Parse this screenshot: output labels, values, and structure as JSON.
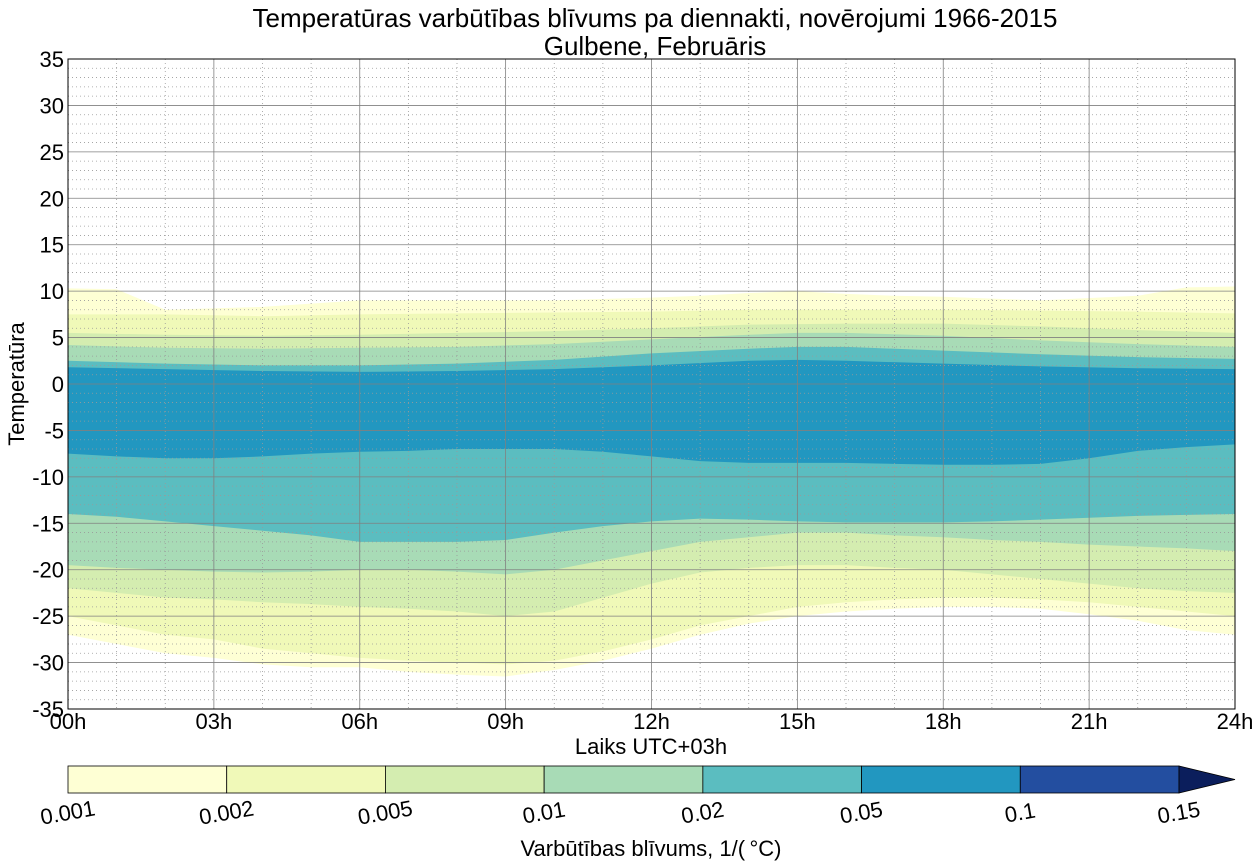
{
  "chart_data": {
    "type": "contour",
    "title": "Temperatūras varbūtības blīvums pa diennakti, novērojumi 1966-2015",
    "subtitle": "Gulbene, Februāris",
    "xlabel": "Laiks UTC+03h",
    "ylabel": "Temperatūra",
    "x_ticks": [
      "00h",
      "03h",
      "06h",
      "09h",
      "12h",
      "15h",
      "18h",
      "21h",
      "24h"
    ],
    "x_range_hours": [
      0,
      24
    ],
    "y_ticks": [
      35,
      30,
      25,
      20,
      15,
      10,
      5,
      0,
      -5,
      -10,
      -15,
      -20,
      -25,
      -30,
      -35
    ],
    "y_range": [
      -35,
      35
    ],
    "grid": "major solid, minor dotted",
    "colorbar": {
      "label": "Varbūtības blīvums, 1/( °C)",
      "levels": [
        "0.001",
        "0.002",
        "0.005",
        "0.01",
        "0.02",
        "0.05",
        "0.1",
        "0.15"
      ],
      "colors": [
        "#feffd4",
        "#f0f9b8",
        "#d4edb0",
        "#a8dbb6",
        "#5bbdc0",
        "#2297c0",
        "#234ea0",
        "#0b1e5c"
      ],
      "extend": "max"
    },
    "bands": [
      {
        "level": "0.001",
        "color": "#feffd4",
        "upper": [
          [
            0,
            10.3
          ],
          [
            1,
            10.2
          ],
          [
            2,
            8
          ],
          [
            4,
            8.3
          ],
          [
            6,
            9
          ],
          [
            8,
            9
          ],
          [
            10,
            9
          ],
          [
            12,
            9.3
          ],
          [
            13,
            9.5
          ],
          [
            14,
            9.8
          ],
          [
            15,
            10
          ],
          [
            16,
            9.7
          ],
          [
            17,
            9.5
          ],
          [
            18,
            9.4
          ],
          [
            19,
            9.2
          ],
          [
            20,
            9
          ],
          [
            22,
            9.5
          ],
          [
            23,
            10.4
          ],
          [
            24,
            10.5
          ]
        ],
        "lower": [
          [
            0,
            -27
          ],
          [
            1,
            -28
          ],
          [
            2,
            -29
          ],
          [
            3,
            -29.5
          ],
          [
            4,
            -30.2
          ],
          [
            5,
            -30.5
          ],
          [
            6,
            -30.5
          ],
          [
            7,
            -31
          ],
          [
            8,
            -31.3
          ],
          [
            9,
            -31.5
          ],
          [
            10,
            -30.8
          ],
          [
            11,
            -29.8
          ],
          [
            12,
            -28.5
          ],
          [
            13,
            -27
          ],
          [
            14,
            -25.8
          ],
          [
            15,
            -25
          ],
          [
            16,
            -24.5
          ],
          [
            17,
            -24.2
          ],
          [
            18,
            -24
          ],
          [
            19,
            -24
          ],
          [
            20,
            -24.2
          ],
          [
            21,
            -24.8
          ],
          [
            22,
            -25.5
          ],
          [
            23,
            -26.5
          ],
          [
            24,
            -27
          ]
        ]
      },
      {
        "level": "0.002",
        "color": "#f0f9b8",
        "upper": [
          [
            0,
            7.5
          ],
          [
            2,
            7.5
          ],
          [
            4,
            7.3
          ],
          [
            6,
            7.5
          ],
          [
            8,
            7.6
          ],
          [
            10,
            7.7
          ],
          [
            12,
            7.8
          ],
          [
            14,
            8
          ],
          [
            16,
            8
          ],
          [
            18,
            8
          ],
          [
            20,
            7.9
          ],
          [
            22,
            7.8
          ],
          [
            24,
            7.6
          ]
        ],
        "lower": [
          [
            0,
            -25
          ],
          [
            1,
            -26
          ],
          [
            2,
            -27
          ],
          [
            3,
            -27.5
          ],
          [
            4,
            -28.5
          ],
          [
            5,
            -29
          ],
          [
            6,
            -29.5
          ],
          [
            7,
            -29.8
          ],
          [
            8,
            -30
          ],
          [
            9,
            -30.2
          ],
          [
            10,
            -29.8
          ],
          [
            11,
            -28.8
          ],
          [
            12,
            -27.5
          ],
          [
            13,
            -26
          ],
          [
            14,
            -25
          ],
          [
            15,
            -24
          ],
          [
            16,
            -23.5
          ],
          [
            17,
            -23.2
          ],
          [
            18,
            -23
          ],
          [
            19,
            -23
          ],
          [
            20,
            -23.2
          ],
          [
            21,
            -23.5
          ],
          [
            22,
            -24
          ],
          [
            23,
            -24.5
          ],
          [
            24,
            -25
          ]
        ]
      },
      {
        "level": "0.005",
        "color": "#d4edb0",
        "upper": [
          [
            0,
            5.5
          ],
          [
            2,
            5.3
          ],
          [
            4,
            5.2
          ],
          [
            6,
            5.3
          ],
          [
            8,
            5.5
          ],
          [
            10,
            5.7
          ],
          [
            12,
            6
          ],
          [
            14,
            6.4
          ],
          [
            16,
            6.5
          ],
          [
            18,
            6.5
          ],
          [
            20,
            6.2
          ],
          [
            22,
            5.8
          ],
          [
            24,
            5.5
          ]
        ],
        "lower": [
          [
            0,
            -22
          ],
          [
            1,
            -22.5
          ],
          [
            2,
            -23
          ],
          [
            3,
            -23.2
          ],
          [
            4,
            -23.5
          ],
          [
            5,
            -23.7
          ],
          [
            6,
            -24
          ],
          [
            7,
            -24.2
          ],
          [
            8,
            -24.5
          ],
          [
            9,
            -25
          ],
          [
            10,
            -24.5
          ],
          [
            11,
            -23
          ],
          [
            12,
            -21.5
          ],
          [
            13,
            -20.3
          ],
          [
            14,
            -19.8
          ],
          [
            15,
            -19.5
          ],
          [
            16,
            -19.5
          ],
          [
            17,
            -19.8
          ],
          [
            18,
            -20
          ],
          [
            19,
            -20.5
          ],
          [
            20,
            -21
          ],
          [
            21,
            -21.5
          ],
          [
            22,
            -22
          ],
          [
            23,
            -22.3
          ],
          [
            24,
            -22.5
          ]
        ]
      },
      {
        "level": "0.01",
        "color": "#a8dbb6",
        "upper": [
          [
            0,
            4.2
          ],
          [
            2,
            3.9
          ],
          [
            4,
            3.8
          ],
          [
            6,
            3.9
          ],
          [
            8,
            4
          ],
          [
            10,
            4.3
          ],
          [
            12,
            4.8
          ],
          [
            14,
            5.3
          ],
          [
            15,
            5.5
          ],
          [
            16,
            5.5
          ],
          [
            18,
            5.2
          ],
          [
            20,
            4.7
          ],
          [
            22,
            4.3
          ],
          [
            24,
            4
          ]
        ],
        "lower": [
          [
            0,
            -19.5
          ],
          [
            1,
            -19.8
          ],
          [
            2,
            -20
          ],
          [
            3,
            -20.2
          ],
          [
            4,
            -20.3
          ],
          [
            5,
            -20.2
          ],
          [
            6,
            -20
          ],
          [
            7,
            -20
          ],
          [
            8,
            -20.2
          ],
          [
            9,
            -20.5
          ],
          [
            10,
            -20
          ],
          [
            11,
            -19
          ],
          [
            12,
            -18
          ],
          [
            13,
            -17
          ],
          [
            14,
            -16.5
          ],
          [
            15,
            -16
          ],
          [
            16,
            -16
          ],
          [
            17,
            -16.3
          ],
          [
            18,
            -16.5
          ],
          [
            19,
            -16.8
          ],
          [
            20,
            -17
          ],
          [
            21,
            -17.3
          ],
          [
            22,
            -17.5
          ],
          [
            23,
            -17.7
          ],
          [
            24,
            -18
          ]
        ]
      },
      {
        "level": "0.02",
        "color": "#5bbdc0",
        "upper": [
          [
            0,
            2.5
          ],
          [
            2,
            2.2
          ],
          [
            4,
            2
          ],
          [
            6,
            2
          ],
          [
            8,
            2.2
          ],
          [
            10,
            2.6
          ],
          [
            12,
            3.3
          ],
          [
            14,
            3.8
          ],
          [
            15,
            4
          ],
          [
            16,
            4
          ],
          [
            18,
            3.6
          ],
          [
            20,
            3.2
          ],
          [
            22,
            2.9
          ],
          [
            24,
            2.7
          ]
        ],
        "lower": [
          [
            0,
            -14
          ],
          [
            1,
            -14.3
          ],
          [
            2,
            -14.8
          ],
          [
            3,
            -15.3
          ],
          [
            4,
            -15.8
          ],
          [
            5,
            -16.3
          ],
          [
            6,
            -17
          ],
          [
            7,
            -17
          ],
          [
            8,
            -17
          ],
          [
            9,
            -16.8
          ],
          [
            10,
            -16
          ],
          [
            11,
            -15.3
          ],
          [
            12,
            -14.8
          ],
          [
            13,
            -14.5
          ],
          [
            14,
            -14.6
          ],
          [
            15,
            -14.8
          ],
          [
            16,
            -14.9
          ],
          [
            17,
            -14.9
          ],
          [
            18,
            -14.9
          ],
          [
            19,
            -14.8
          ],
          [
            20,
            -14.6
          ],
          [
            21,
            -14.4
          ],
          [
            22,
            -14.2
          ],
          [
            23,
            -14.1
          ],
          [
            24,
            -14
          ]
        ]
      },
      {
        "level": "0.05",
        "color": "#2297c0",
        "upper": [
          [
            0,
            1.8
          ],
          [
            2,
            1.6
          ],
          [
            4,
            1.4
          ],
          [
            6,
            1.3
          ],
          [
            8,
            1.4
          ],
          [
            10,
            1.6
          ],
          [
            12,
            2
          ],
          [
            14,
            2.5
          ],
          [
            15,
            2.6
          ],
          [
            16,
            2.5
          ],
          [
            18,
            2.2
          ],
          [
            20,
            1.9
          ],
          [
            22,
            1.7
          ],
          [
            24,
            1.6
          ]
        ],
        "lower": [
          [
            0,
            -7.5
          ],
          [
            1,
            -7.8
          ],
          [
            2,
            -8
          ],
          [
            3,
            -8
          ],
          [
            4,
            -7.8
          ],
          [
            5,
            -7.5
          ],
          [
            6,
            -7.3
          ],
          [
            7,
            -7.2
          ],
          [
            8,
            -7
          ],
          [
            9,
            -7
          ],
          [
            10,
            -7
          ],
          [
            11,
            -7.3
          ],
          [
            12,
            -7.8
          ],
          [
            13,
            -8.3
          ],
          [
            14,
            -8.5
          ],
          [
            15,
            -8.5
          ],
          [
            16,
            -8.5
          ],
          [
            17,
            -8.6
          ],
          [
            18,
            -8.7
          ],
          [
            19,
            -8.7
          ],
          [
            20,
            -8.6
          ],
          [
            21,
            -8
          ],
          [
            22,
            -7.2
          ],
          [
            23,
            -6.8
          ],
          [
            24,
            -6.5
          ]
        ]
      }
    ]
  }
}
